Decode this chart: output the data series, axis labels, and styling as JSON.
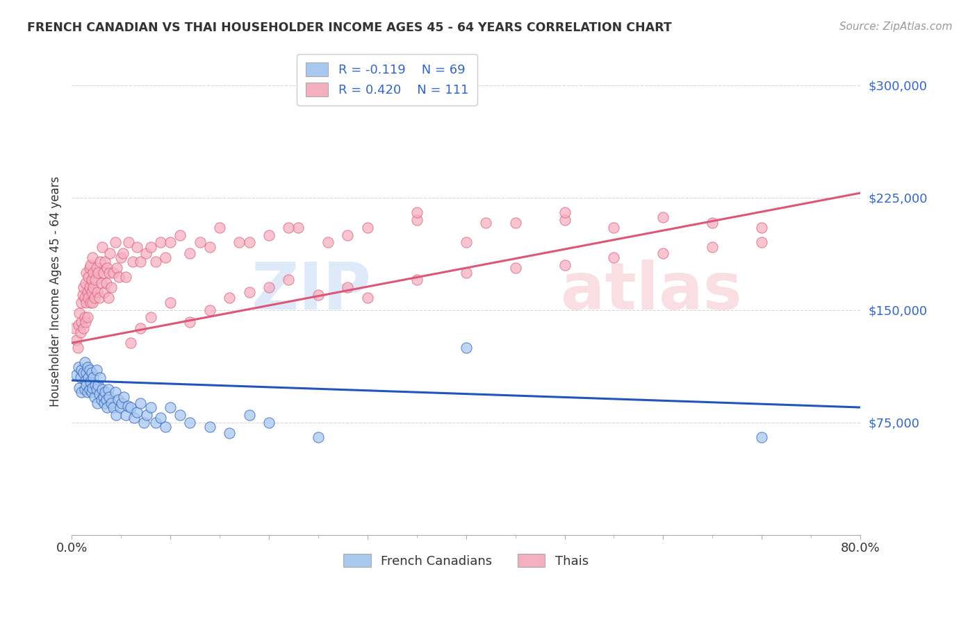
{
  "title": "FRENCH CANADIAN VS THAI HOUSEHOLDER INCOME AGES 45 - 64 YEARS CORRELATION CHART",
  "source": "Source: ZipAtlas.com",
  "ylabel": "Householder Income Ages 45 - 64 years",
  "xmin": 0.0,
  "xmax": 0.8,
  "ymin": 0,
  "ymax": 325000,
  "yticks": [
    75000,
    150000,
    225000,
    300000
  ],
  "ytick_labels": [
    "$75,000",
    "$150,000",
    "$225,000",
    "$300,000"
  ],
  "legend_blue_r": "R = -0.119",
  "legend_blue_n": "N = 69",
  "legend_pink_r": "R = 0.420",
  "legend_pink_n": "N = 111",
  "legend_blue_label": "French Canadians",
  "legend_pink_label": "Thais",
  "dot_color_blue": "#a8c8f0",
  "dot_color_pink": "#f5b0c0",
  "line_color_blue": "#2255bb",
  "line_color_pink": "#dd5577",
  "watermark_zip": "ZIP",
  "watermark_atlas": "atlas",
  "blue_line_x0": 0.0,
  "blue_line_x1": 0.8,
  "blue_line_y0": 103000,
  "blue_line_y1": 85000,
  "pink_line_x0": 0.0,
  "pink_line_x1": 0.8,
  "pink_line_y0": 128000,
  "pink_line_y1": 228000,
  "blue_scatter_x": [
    0.005,
    0.007,
    0.008,
    0.009,
    0.01,
    0.01,
    0.012,
    0.013,
    0.013,
    0.014,
    0.015,
    0.015,
    0.016,
    0.016,
    0.017,
    0.018,
    0.018,
    0.019,
    0.02,
    0.02,
    0.021,
    0.022,
    0.023,
    0.024,
    0.025,
    0.025,
    0.026,
    0.027,
    0.028,
    0.029,
    0.03,
    0.031,
    0.032,
    0.033,
    0.034,
    0.035,
    0.036,
    0.037,
    0.038,
    0.04,
    0.042,
    0.044,
    0.045,
    0.047,
    0.049,
    0.051,
    0.053,
    0.055,
    0.057,
    0.06,
    0.063,
    0.066,
    0.07,
    0.073,
    0.076,
    0.08,
    0.085,
    0.09,
    0.095,
    0.1,
    0.11,
    0.12,
    0.14,
    0.16,
    0.18,
    0.2,
    0.25,
    0.4,
    0.7
  ],
  "blue_scatter_y": [
    107000,
    112000,
    98000,
    105000,
    110000,
    95000,
    108000,
    97000,
    115000,
    103000,
    100000,
    108000,
    95000,
    112000,
    105000,
    97000,
    110000,
    102000,
    95000,
    108000,
    98000,
    105000,
    92000,
    100000,
    97000,
    110000,
    88000,
    100000,
    94000,
    105000,
    90000,
    97000,
    92000,
    88000,
    95000,
    90000,
    85000,
    97000,
    92000,
    88000,
    85000,
    95000,
    80000,
    90000,
    85000,
    88000,
    92000,
    80000,
    86000,
    85000,
    78000,
    82000,
    88000,
    75000,
    80000,
    85000,
    75000,
    78000,
    72000,
    85000,
    80000,
    75000,
    72000,
    68000,
    80000,
    75000,
    65000,
    125000,
    65000
  ],
  "pink_scatter_x": [
    0.003,
    0.005,
    0.006,
    0.007,
    0.008,
    0.009,
    0.01,
    0.01,
    0.011,
    0.012,
    0.012,
    0.013,
    0.013,
    0.014,
    0.014,
    0.015,
    0.015,
    0.016,
    0.016,
    0.017,
    0.017,
    0.018,
    0.018,
    0.019,
    0.019,
    0.02,
    0.02,
    0.021,
    0.021,
    0.022,
    0.022,
    0.023,
    0.024,
    0.025,
    0.026,
    0.027,
    0.028,
    0.029,
    0.03,
    0.031,
    0.032,
    0.033,
    0.034,
    0.035,
    0.036,
    0.037,
    0.038,
    0.039,
    0.04,
    0.042,
    0.044,
    0.046,
    0.048,
    0.05,
    0.052,
    0.055,
    0.058,
    0.062,
    0.066,
    0.07,
    0.075,
    0.08,
    0.085,
    0.09,
    0.095,
    0.1,
    0.11,
    0.12,
    0.13,
    0.15,
    0.17,
    0.2,
    0.23,
    0.26,
    0.3,
    0.35,
    0.4,
    0.45,
    0.5,
    0.55,
    0.6,
    0.65,
    0.7,
    0.14,
    0.18,
    0.22,
    0.28,
    0.35,
    0.42,
    0.5,
    0.06,
    0.07,
    0.08,
    0.1,
    0.12,
    0.14,
    0.16,
    0.18,
    0.2,
    0.22,
    0.25,
    0.28,
    0.3,
    0.35,
    0.4,
    0.45,
    0.5,
    0.55,
    0.6,
    0.65,
    0.7
  ],
  "pink_scatter_y": [
    138000,
    130000,
    125000,
    140000,
    148000,
    135000,
    155000,
    142000,
    160000,
    138000,
    165000,
    145000,
    158000,
    168000,
    142000,
    175000,
    155000,
    162000,
    145000,
    172000,
    158000,
    165000,
    178000,
    155000,
    180000,
    162000,
    170000,
    155000,
    185000,
    165000,
    175000,
    158000,
    170000,
    178000,
    162000,
    175000,
    158000,
    182000,
    168000,
    192000,
    175000,
    162000,
    182000,
    168000,
    178000,
    158000,
    175000,
    188000,
    165000,
    175000,
    195000,
    178000,
    172000,
    185000,
    188000,
    172000,
    195000,
    182000,
    192000,
    182000,
    188000,
    192000,
    182000,
    195000,
    185000,
    195000,
    200000,
    188000,
    195000,
    205000,
    195000,
    200000,
    205000,
    195000,
    205000,
    210000,
    195000,
    208000,
    210000,
    205000,
    212000,
    208000,
    205000,
    192000,
    195000,
    205000,
    200000,
    215000,
    208000,
    215000,
    128000,
    138000,
    145000,
    155000,
    142000,
    150000,
    158000,
    162000,
    165000,
    170000,
    160000,
    165000,
    158000,
    170000,
    175000,
    178000,
    180000,
    185000,
    188000,
    192000,
    195000
  ]
}
